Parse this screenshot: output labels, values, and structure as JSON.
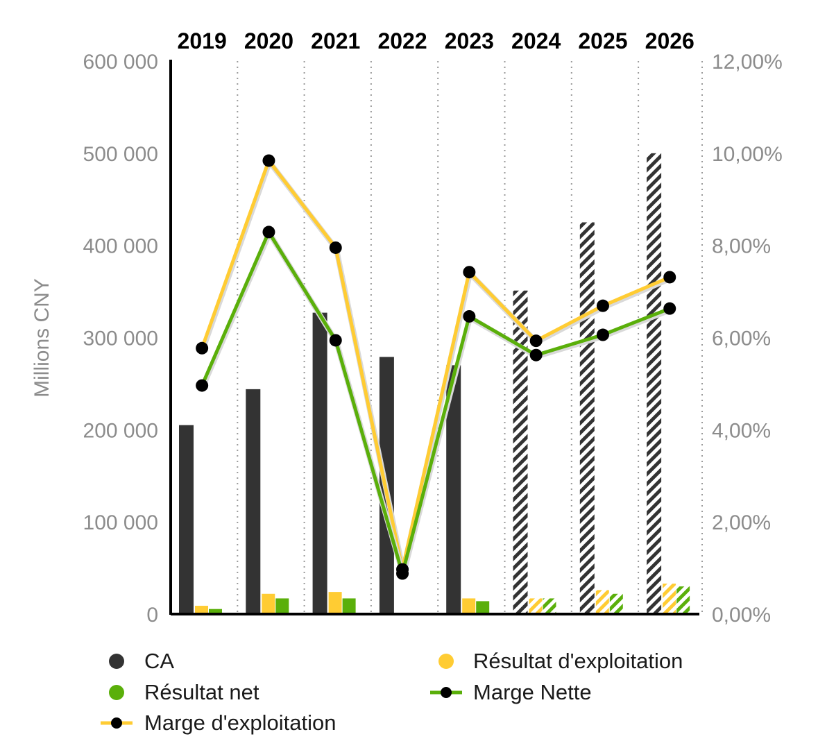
{
  "chart_data": {
    "type": "bar",
    "categories": [
      "2019",
      "2020",
      "2021",
      "2022",
      "2023",
      "2024",
      "2025",
      "2026"
    ],
    "forecast_from": "2024",
    "y_left": {
      "label": "Millions CNY",
      "min": 0,
      "max": 600000,
      "ticks": [
        0,
        100000,
        200000,
        300000,
        400000,
        500000,
        600000
      ],
      "tick_labels": [
        "0",
        "100 000",
        "200 000",
        "300 000",
        "400 000",
        "500 000",
        "600 000"
      ]
    },
    "y_right": {
      "min": 0,
      "max": 12,
      "ticks": [
        0,
        2,
        4,
        6,
        8,
        10,
        12
      ],
      "tick_labels": [
        "0,00%",
        "2,00%",
        "4,00%",
        "6,00%",
        "8,00%",
        "10,00%",
        "12,00%"
      ]
    },
    "bars": [
      {
        "name": "CA",
        "color": "#333333",
        "values": [
          205000,
          244000,
          327000,
          279000,
          270000,
          351000,
          425000,
          500000
        ]
      },
      {
        "name": "Résultat d'exploitation",
        "color": "#ffcc33",
        "values": [
          9000,
          22000,
          24000,
          0,
          17000,
          17000,
          26000,
          33000
        ]
      },
      {
        "name": "Résultat net",
        "color": "#5aaf0a",
        "values": [
          5500,
          17000,
          17000,
          0,
          14000,
          17000,
          22000,
          30000
        ]
      }
    ],
    "lines": [
      {
        "name": "Marge d'exploitation",
        "color": "#ffcc33",
        "values": [
          5.77,
          9.84,
          7.95,
          0.97,
          7.42,
          5.93,
          6.69,
          7.31
        ]
      },
      {
        "name": "Marge Nette",
        "color": "#5aaf0a",
        "values": [
          4.96,
          8.29,
          5.94,
          0.88,
          6.46,
          5.62,
          6.06,
          6.63
        ]
      }
    ],
    "grid": "vertical dotted",
    "legend_position": "bottom"
  },
  "legend": {
    "ca": "CA",
    "resultat_exploitation": "Résultat d'exploitation",
    "resultat_net": "Résultat net",
    "marge_nette": "Marge Nette",
    "marge_exploitation": "Marge d'exploitation"
  }
}
